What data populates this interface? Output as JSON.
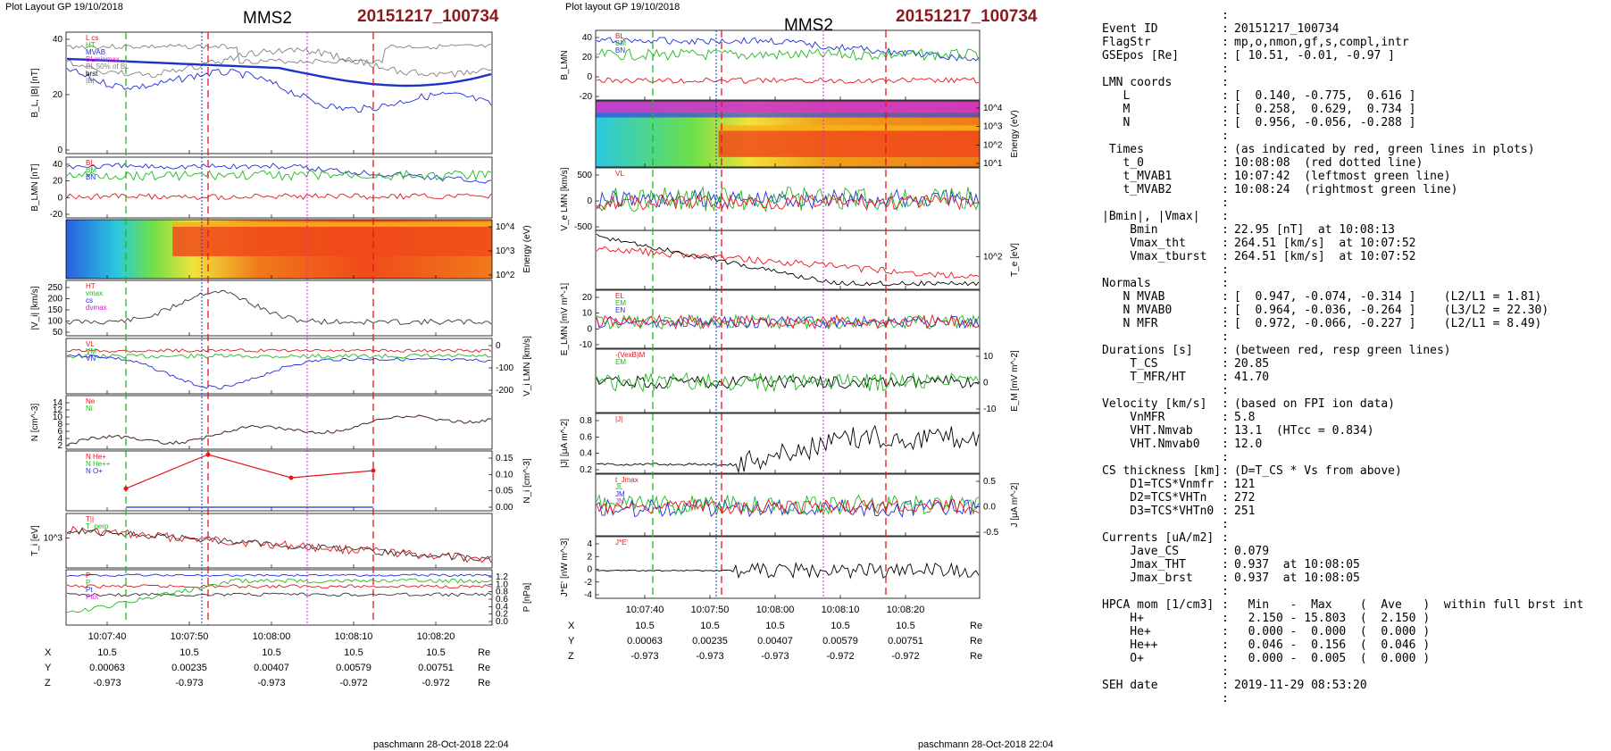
{
  "page": {
    "left_header": "Plot Layout GP 19/10/2018",
    "right_header": "Plot layout GP 19/10/2018",
    "title": "MMS2",
    "event_id": "20151217_100734",
    "footer": "paschmann 28-Oct-2018 22:04"
  },
  "colors": {
    "red": "#e8141a",
    "green": "#1fb81f",
    "blue": "#1f2ddb",
    "magenta": "#d61fd6",
    "black": "#000000",
    "gray": "#808080",
    "thick_blue": "#1c32c8",
    "event_red": "#8b1a1a"
  },
  "time_axis": {
    "ticks": [
      "10:07:40",
      "10:07:50",
      "10:08:00",
      "10:08:10",
      "10:08:20"
    ]
  },
  "position_table": {
    "rows": [
      {
        "label": "X",
        "values": [
          "10.5",
          "10.5",
          "10.5",
          "10.5",
          "10.5"
        ],
        "unit": "Re"
      },
      {
        "label": "Y",
        "values": [
          "0.00063",
          "0.00235",
          "0.00407",
          "0.00579",
          "0.00751"
        ],
        "unit": "Re"
      },
      {
        "label": "Z",
        "values": [
          "-0.973",
          "-0.973",
          "-0.973",
          "-0.972",
          "-0.972"
        ],
        "unit": "Re"
      }
    ]
  },
  "chart_data": [
    {
      "type": "line",
      "column": "left",
      "panels": [
        {
          "ylabel": "B_L, |B| [nT]",
          "yticks": [
            "40",
            "20",
            "0"
          ],
          "legend": [
            "L cs",
            "HT",
            "MVAB",
            "BLminmax",
            "BL 50% of BL",
            "brst",
            "|B|"
          ]
        },
        {
          "ylabel": "B_LMN [nT]",
          "yticks": [
            "40",
            "20",
            "0",
            "-20"
          ],
          "series": [
            "BL",
            "BM",
            "BN"
          ]
        },
        {
          "type": "heatmap",
          "ylabel_right": "Energy (eV)",
          "yticks_right": [
            "10^4",
            "10^3",
            "10^2"
          ]
        },
        {
          "ylabel": "|V_i| [km/s]",
          "yticks": [
            "250",
            "200",
            "150",
            "100",
            "50"
          ],
          "legend": [
            "HT",
            "vmax",
            "cs",
            "dvmax"
          ]
        },
        {
          "ylabel_right": "V_i LMN [km/s]",
          "yticks_right": [
            "0",
            "-100",
            "-200"
          ],
          "series": [
            "VL",
            "VM",
            "VN"
          ]
        },
        {
          "ylabel": "N [cm^-3]",
          "yticks": [
            "14",
            "12",
            "10",
            "8",
            "6",
            "4",
            "2"
          ],
          "legend": [
            "Ne",
            "Ni"
          ]
        },
        {
          "ylabel_right": "N_i [cm^-3]",
          "yticks_right": [
            "0.15",
            "0.10",
            "0.05",
            "0.00"
          ],
          "legend": [
            "N He+",
            "N He++",
            "N O+"
          ],
          "he_pp_points": [
            0.046,
            0.15,
            0.079,
            0.101
          ]
        },
        {
          "ylabel": "T_i [eV]",
          "yticks": [
            "10^3"
          ],
          "series": [
            "T||",
            "T_perp"
          ]
        },
        {
          "ylabel_right": "P [nPa]",
          "yticks_right": [
            "1.2",
            "1.0",
            "0.8",
            "0.6",
            "0.4",
            "0.2",
            "0.0"
          ],
          "legend": [
            "P",
            "P",
            "Pt",
            "Ptot"
          ]
        }
      ]
    },
    {
      "type": "line",
      "column": "middle",
      "panels": [
        {
          "ylabel": "B_LMN",
          "yticks": [
            "40",
            "20",
            "0",
            "-20"
          ],
          "series": [
            "BL",
            "BM",
            "BN"
          ]
        },
        {
          "type": "heatmap",
          "ylabel_right": "Energy (eV)",
          "yticks_right": [
            "10^4",
            "10^3",
            "10^2",
            "10^1"
          ]
        },
        {
          "ylabel": "V_e LMN [km/s]",
          "yticks": [
            "500",
            "0",
            "-500"
          ],
          "series": [
            "VL"
          ]
        },
        {
          "ylabel_right": "T_e [eV]",
          "yticks_right": [
            "10^2"
          ]
        },
        {
          "ylabel": "E_LMN [mV m^-1]",
          "yticks": [
            "20",
            "10",
            "0",
            "-10"
          ],
          "series": [
            "EL",
            "EM",
            "EN"
          ]
        },
        {
          "ylabel_right": "E_M [mV m^-2]",
          "yticks_right": [
            "10",
            "0",
            "-10"
          ],
          "legend": [
            "-(VexB)M",
            "EM"
          ]
        },
        {
          "ylabel": "|J| [μA m^-2]",
          "yticks": [
            "0.8",
            "0.6",
            "0.4",
            "0.2"
          ],
          "legend": [
            "|J|"
          ]
        },
        {
          "ylabel_right": "J [μA m^-2]",
          "yticks_right": [
            "0.5",
            "0.0",
            "-0.5"
          ],
          "legend": [
            "t_Jmax",
            "JL",
            "JM",
            "JN"
          ]
        },
        {
          "ylabel": "J*E' [nW m^-3]",
          "yticks": [
            "4",
            "2",
            "0",
            "-2",
            "-4"
          ],
          "legend": [
            "J*E'"
          ]
        }
      ]
    }
  ],
  "summary": [
    {
      "k": "",
      "v": ""
    },
    {
      "k": "Event ID",
      "v": "20151217_100734"
    },
    {
      "k": "FlagStr",
      "v": "mp,o,nmon,gf,s,compl,intr"
    },
    {
      "k": "GSEpos [Re]",
      "v": "[ 10.51, -0.01, -0.97 ]"
    },
    {
      "k": "",
      "v": ""
    },
    {
      "k": "LMN coords",
      "v": ""
    },
    {
      "k": "   L",
      "v": "[  0.140, -0.775,  0.616 ]"
    },
    {
      "k": "   M",
      "v": "[  0.258,  0.629,  0.734 ]"
    },
    {
      "k": "   N",
      "v": "[  0.956, -0.056, -0.288 ]"
    },
    {
      "k": "",
      "v": ""
    },
    {
      "k": " Times",
      "v": "(as indicated by red, green lines in plots)"
    },
    {
      "k": "   t_0",
      "v": "10:08:08  (red dotted line)"
    },
    {
      "k": "   t_MVAB1",
      "v": "10:07:42  (leftmost green line)"
    },
    {
      "k": "   t_MVAB2",
      "v": "10:08:24  (rightmost green line)"
    },
    {
      "k": "",
      "v": ""
    },
    {
      "k": "|Bmin|, |Vmax|",
      "v": ""
    },
    {
      "k": "    Bmin",
      "v": "22.95 [nT]  at 10:08:13"
    },
    {
      "k": "    Vmax_tht",
      "v": "264.51 [km/s]  at 10:07:52"
    },
    {
      "k": "    Vmax_tburst",
      "v": "264.51 [km/s]  at 10:07:52"
    },
    {
      "k": "",
      "v": ""
    },
    {
      "k": "Normals",
      "v": ""
    },
    {
      "k": "   N MVAB",
      "v": "[  0.947, -0.074, -0.314 ]    (L2/L1 = 1.81)"
    },
    {
      "k": "   N MVAB0",
      "v": "[  0.964, -0.036, -0.264 ]    (L3/L2 = 22.30)"
    },
    {
      "k": "   N MFR",
      "v": "[  0.972, -0.066, -0.227 ]    (L2/L1 = 8.49)"
    },
    {
      "k": "",
      "v": ""
    },
    {
      "k": "Durations [s]",
      "v": "(between red, resp green lines)"
    },
    {
      "k": "    T_CS",
      "v": "20.85"
    },
    {
      "k": "    T_MFR/HT",
      "v": "41.70"
    },
    {
      "k": "",
      "v": ""
    },
    {
      "k": "Velocity [km/s]",
      "v": "(based on FPI ion data)"
    },
    {
      "k": "    VnMFR",
      "v": "5.8"
    },
    {
      "k": "    VHT.Nmvab",
      "v": "13.1  (HTcc = 0.834)"
    },
    {
      "k": "    VHT.Nmvab0",
      "v": "12.0"
    },
    {
      "k": "",
      "v": ""
    },
    {
      "k": "CS thickness [km]",
      "v": "(D=T_CS * Vs from above)"
    },
    {
      "k": "    D1=TCS*Vnmfr",
      "v": "121"
    },
    {
      "k": "    D2=TCS*VHTn",
      "v": "272"
    },
    {
      "k": "    D3=TCS*VHTn0",
      "v": "251"
    },
    {
      "k": "",
      "v": ""
    },
    {
      "k": "Currents [uA/m2]",
      "v": ""
    },
    {
      "k": "    Jave_CS",
      "v": "0.079"
    },
    {
      "k": "    Jmax_THT",
      "v": "0.937  at 10:08:05"
    },
    {
      "k": "    Jmax_brst",
      "v": "0.937  at 10:08:05"
    },
    {
      "k": "",
      "v": ""
    },
    {
      "k": "HPCA mom [1/cm3]",
      "v": "  Min   -  Max    (  Ave   )  within full brst int"
    },
    {
      "k": "    H+",
      "v": "  2.150 - 15.803  (  2.150 )"
    },
    {
      "k": "    He+",
      "v": "  0.000 -  0.000  (  0.000 )"
    },
    {
      "k": "    He++",
      "v": "  0.046 -  0.156  (  0.046 )"
    },
    {
      "k": "    O+",
      "v": "  0.000 -  0.005  (  0.000 )"
    },
    {
      "k": "",
      "v": ""
    },
    {
      "k": "SEH date",
      "v": "2019-11-29 08:53:20"
    },
    {
      "k": "",
      "v": ""
    }
  ]
}
